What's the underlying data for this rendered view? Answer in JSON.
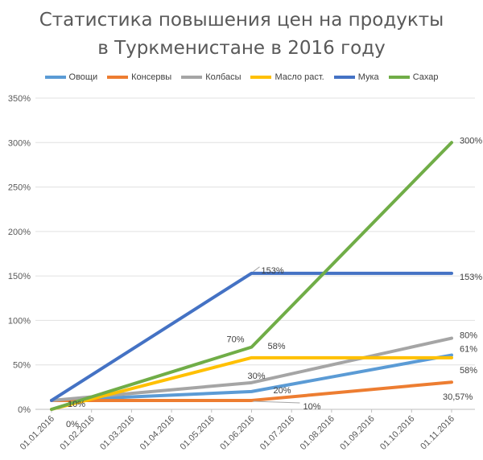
{
  "title_line1": "Статистика повышения цен на продукты",
  "title_line2": "в Туркменистане в 2016 году",
  "chart_data": {
    "type": "line",
    "title": "Статистика повышения цен на продукты в Туркменистане в 2016 году",
    "categories": [
      "01.01.2016",
      "01.02.2016",
      "01.03.2016",
      "01.04.2016",
      "01.05.2016",
      "01.06.2016",
      "01.07.2016",
      "01.08.2016",
      "01.09.2016",
      "01.10.2016",
      "01.11.2016"
    ],
    "ylim": [
      0,
      350
    ],
    "yticks": [
      "0%",
      "50%",
      "100%",
      "150%",
      "200%",
      "250%",
      "300%",
      "350%"
    ],
    "grid": true,
    "legend_position": "top",
    "series": [
      {
        "name": "Овощи",
        "color": "#5B9BD5",
        "points": [
          [
            0,
            10
          ],
          [
            5,
            20
          ],
          [
            10,
            61
          ]
        ],
        "labels": [
          "",
          "20%",
          "61%"
        ]
      },
      {
        "name": "Консервы",
        "color": "#ED7D31",
        "points": [
          [
            0,
            10
          ],
          [
            5,
            10
          ],
          [
            10,
            30.57
          ]
        ],
        "labels": [
          "10%",
          "10%",
          "30,57%"
        ]
      },
      {
        "name": "Колбасы",
        "color": "#A5A5A5",
        "points": [
          [
            0,
            10
          ],
          [
            5,
            30
          ],
          [
            10,
            80
          ]
        ],
        "labels": [
          "",
          "30%",
          "80%"
        ]
      },
      {
        "name": "Масло раст.",
        "color": "#FFC000",
        "points": [
          [
            0,
            0
          ],
          [
            5,
            58
          ],
          [
            10,
            58
          ]
        ],
        "labels": [
          "",
          "58%",
          "58%"
        ]
      },
      {
        "name": "Мука",
        "color": "#4472C4",
        "points": [
          [
            0,
            10
          ],
          [
            5,
            153
          ],
          [
            10,
            153
          ]
        ],
        "labels": [
          "",
          "153%",
          "153%"
        ]
      },
      {
        "name": "Сахар",
        "color": "#70AD47",
        "points": [
          [
            0,
            0
          ],
          [
            5,
            70
          ],
          [
            10,
            300
          ]
        ],
        "labels": [
          "0%",
          "70%",
          "300%"
        ]
      }
    ]
  }
}
